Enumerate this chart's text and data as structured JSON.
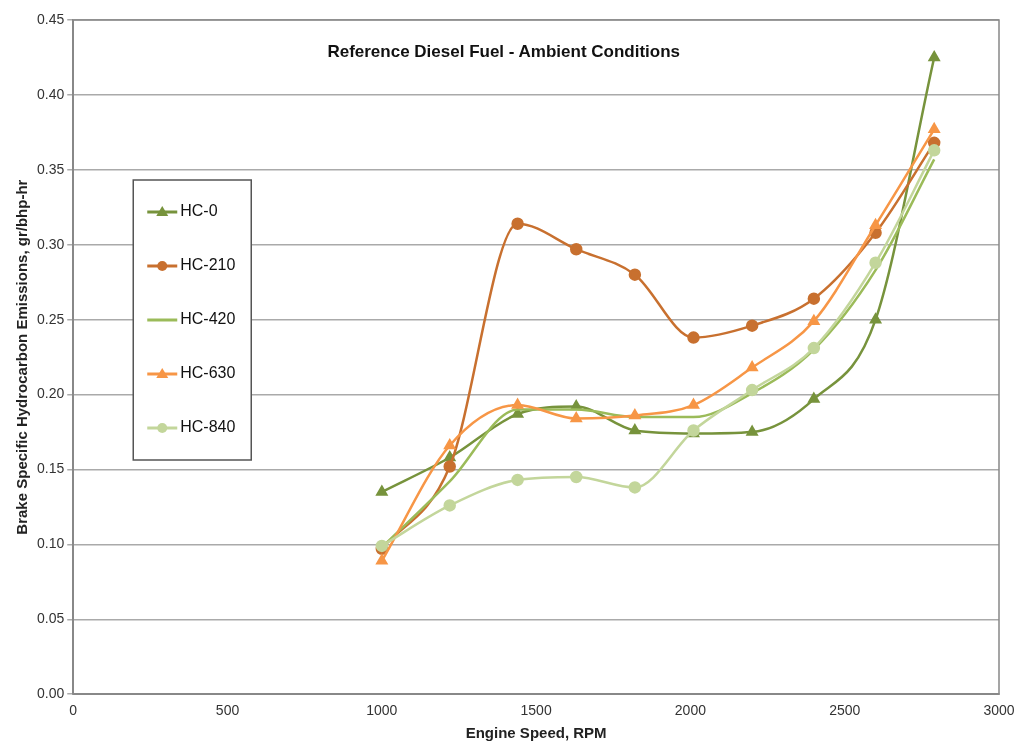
{
  "chart_data": {
    "type": "line",
    "title": "Reference Diesel Fuel - Ambient Conditions",
    "xlabel": "Engine Speed, RPM",
    "ylabel": "Brake Specific Hydrocarbon Emissions, gr/bhp-hr",
    "x": [
      1000,
      1220,
      1440,
      1630,
      1820,
      2010,
      2200,
      2400,
      2600,
      2790
    ],
    "series": [
      {
        "name": "HC-0",
        "color": "#77933c",
        "marker": "triangle",
        "values": [
          0.135,
          0.158,
          0.187,
          0.192,
          0.176,
          0.174,
          0.175,
          0.197,
          0.25,
          0.425
        ]
      },
      {
        "name": "HC-210",
        "color": "#c8702f",
        "marker": "circle",
        "values": [
          0.097,
          0.152,
          0.314,
          0.297,
          0.28,
          0.238,
          0.246,
          0.264,
          0.308,
          0.368
        ]
      },
      {
        "name": "HC-420",
        "color": "#9bbb59",
        "marker": "none",
        "values": [
          0.098,
          0.142,
          0.19,
          0.19,
          0.185,
          0.185,
          0.201,
          0.23,
          0.283,
          0.357
        ]
      },
      {
        "name": "HC-630",
        "color": "#f79646",
        "marker": "triangle",
        "values": [
          0.089,
          0.166,
          0.193,
          0.184,
          0.186,
          0.193,
          0.218,
          0.249,
          0.313,
          0.377
        ]
      },
      {
        "name": "HC-840",
        "color": "#c3d69b",
        "marker": "circle",
        "values": [
          0.099,
          0.126,
          0.143,
          0.145,
          0.138,
          0.176,
          0.203,
          0.231,
          0.288,
          0.363
        ]
      }
    ],
    "xlim": [
      0,
      3000
    ],
    "xticks": [
      0,
      500,
      1000,
      1500,
      2000,
      2500,
      3000
    ],
    "ylim": [
      0,
      0.45
    ],
    "yticks": [
      {
        "value": 0,
        "label": "0.00"
      },
      {
        "value": 0.05,
        "label": "0.05"
      },
      {
        "value": 0.1,
        "label": "0.10"
      },
      {
        "value": 0.15,
        "label": "0.15"
      },
      {
        "value": 0.2,
        "label": "0.20"
      },
      {
        "value": 0.25,
        "label": "0.25"
      },
      {
        "value": 0.3,
        "label": "0.30"
      },
      {
        "value": 0.35,
        "label": "0.35"
      },
      {
        "value": 0.4,
        "label": "0.40"
      },
      {
        "value": 0.45,
        "label": "0.45"
      }
    ],
    "grid": "y",
    "legend": "left"
  }
}
